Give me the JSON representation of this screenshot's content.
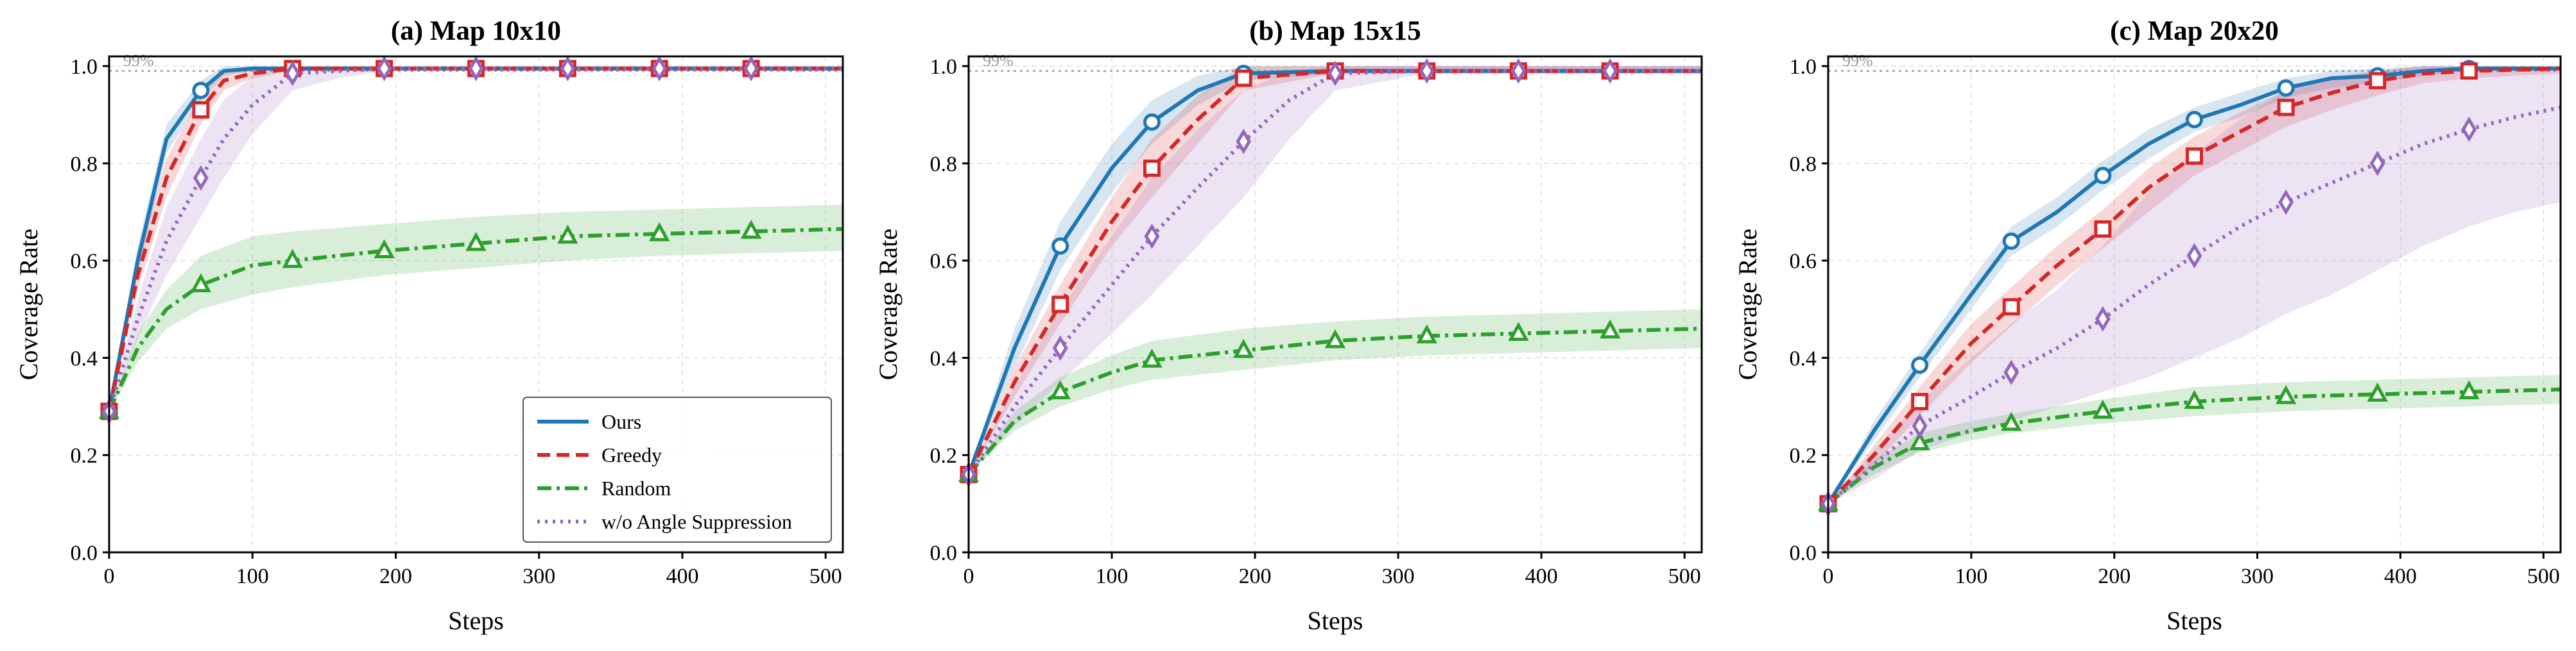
{
  "chart_data": [
    {
      "type": "line",
      "title": "(a) Map 10x10",
      "xlabel": "Steps",
      "ylabel": "Coverage Rate",
      "xlim": [
        0,
        512
      ],
      "ylim": [
        0,
        1.02
      ],
      "xticks": [
        "0",
        "100",
        "200",
        "300",
        "400",
        "500"
      ],
      "yticks": [
        "0.0",
        "0.2",
        "0.4",
        "0.6",
        "0.8",
        "1.0"
      ],
      "grid": true,
      "reference_line": {
        "value": 0.99,
        "label": "99%"
      },
      "legend": {
        "location": "lower-right",
        "entries": [
          "Ours",
          "Greedy",
          "Random",
          "w/o Angle Suppression"
        ]
      },
      "series": [
        {
          "name": "Ours",
          "x": [
            0,
            20,
            40,
            64,
            80,
            100,
            128,
            192,
            256,
            320,
            384,
            448,
            512
          ],
          "values": [
            0.29,
            0.6,
            0.85,
            0.95,
            0.99,
            0.995,
            0.995,
            0.995,
            0.995,
            0.995,
            0.995,
            0.995,
            0.995
          ],
          "lower": [
            0.29,
            0.57,
            0.82,
            0.93,
            0.98,
            0.99,
            0.99,
            0.99,
            0.99,
            0.99,
            0.99,
            0.99,
            0.99
          ],
          "upper": [
            0.29,
            0.63,
            0.88,
            0.97,
            1.0,
            1.0,
            1.0,
            1.0,
            1.0,
            1.0,
            1.0,
            1.0,
            1.0
          ]
        },
        {
          "name": "Greedy",
          "x": [
            0,
            20,
            40,
            64,
            80,
            100,
            128,
            192,
            256,
            320,
            384,
            448,
            512
          ],
          "values": [
            0.29,
            0.57,
            0.77,
            0.91,
            0.97,
            0.985,
            0.995,
            0.995,
            0.995,
            0.995,
            0.995,
            0.995,
            0.995
          ],
          "lower": [
            0.29,
            0.54,
            0.73,
            0.88,
            0.95,
            0.975,
            0.99,
            0.99,
            0.99,
            0.99,
            0.99,
            0.99,
            0.99
          ],
          "upper": [
            0.29,
            0.6,
            0.81,
            0.94,
            0.99,
            1.0,
            1.0,
            1.0,
            1.0,
            1.0,
            1.0,
            1.0,
            1.0
          ]
        },
        {
          "name": "Random",
          "x": [
            0,
            20,
            40,
            64,
            100,
            128,
            192,
            256,
            320,
            384,
            448,
            512
          ],
          "values": [
            0.29,
            0.42,
            0.5,
            0.55,
            0.59,
            0.6,
            0.62,
            0.635,
            0.65,
            0.655,
            0.66,
            0.665
          ],
          "lower": [
            0.29,
            0.39,
            0.46,
            0.5,
            0.53,
            0.545,
            0.57,
            0.585,
            0.6,
            0.61,
            0.615,
            0.62
          ],
          "upper": [
            0.29,
            0.45,
            0.54,
            0.61,
            0.65,
            0.66,
            0.675,
            0.69,
            0.7,
            0.705,
            0.71,
            0.715
          ]
        },
        {
          "name": "w/o Angle Suppression",
          "x": [
            0,
            20,
            40,
            64,
            80,
            100,
            128,
            160,
            192,
            256,
            320,
            384,
            448,
            512
          ],
          "values": [
            0.29,
            0.48,
            0.64,
            0.77,
            0.85,
            0.92,
            0.985,
            0.99,
            0.995,
            0.995,
            0.995,
            0.995,
            0.995,
            0.995
          ],
          "lower": [
            0.29,
            0.44,
            0.57,
            0.69,
            0.77,
            0.86,
            0.95,
            0.975,
            0.99,
            0.99,
            0.99,
            0.99,
            0.99,
            0.99
          ],
          "upper": [
            0.29,
            0.52,
            0.71,
            0.85,
            0.93,
            0.98,
            1.0,
            1.0,
            1.0,
            1.0,
            1.0,
            1.0,
            1.0,
            1.0
          ]
        }
      ]
    },
    {
      "type": "line",
      "title": "(b) Map 15x15",
      "xlabel": "Steps",
      "ylabel": "Coverage Rate",
      "xlim": [
        0,
        512
      ],
      "ylim": [
        0,
        1.02
      ],
      "xticks": [
        "0",
        "100",
        "200",
        "300",
        "400",
        "500"
      ],
      "yticks": [
        "0.0",
        "0.2",
        "0.4",
        "0.6",
        "0.8",
        "1.0"
      ],
      "grid": true,
      "reference_line": {
        "value": 0.99,
        "label": "99%"
      },
      "series": [
        {
          "name": "Ours",
          "x": [
            0,
            32,
            64,
            100,
            128,
            160,
            192,
            256,
            320,
            384,
            448,
            512
          ],
          "values": [
            0.16,
            0.42,
            0.63,
            0.79,
            0.885,
            0.95,
            0.985,
            0.99,
            0.99,
            0.99,
            0.99,
            0.99
          ],
          "lower": [
            0.16,
            0.38,
            0.58,
            0.74,
            0.84,
            0.92,
            0.97,
            0.985,
            0.985,
            0.985,
            0.985,
            0.985
          ],
          "upper": [
            0.16,
            0.46,
            0.68,
            0.84,
            0.93,
            0.98,
            1.0,
            1.0,
            1.0,
            1.0,
            1.0,
            1.0
          ]
        },
        {
          "name": "Greedy",
          "x": [
            0,
            32,
            64,
            100,
            128,
            160,
            192,
            256,
            320,
            384,
            448,
            512
          ],
          "values": [
            0.16,
            0.35,
            0.51,
            0.68,
            0.79,
            0.89,
            0.975,
            0.99,
            0.99,
            0.99,
            0.99,
            0.99
          ],
          "lower": [
            0.16,
            0.32,
            0.47,
            0.63,
            0.73,
            0.84,
            0.95,
            0.985,
            0.985,
            0.985,
            0.985,
            0.985
          ],
          "upper": [
            0.16,
            0.38,
            0.55,
            0.73,
            0.85,
            0.94,
            1.0,
            1.0,
            1.0,
            1.0,
            1.0,
            1.0
          ]
        },
        {
          "name": "Random",
          "x": [
            0,
            32,
            64,
            100,
            128,
            192,
            256,
            320,
            384,
            448,
            512
          ],
          "values": [
            0.16,
            0.27,
            0.33,
            0.37,
            0.395,
            0.415,
            0.435,
            0.445,
            0.45,
            0.455,
            0.46
          ],
          "lower": [
            0.16,
            0.25,
            0.3,
            0.335,
            0.355,
            0.375,
            0.395,
            0.405,
            0.41,
            0.415,
            0.42
          ],
          "upper": [
            0.16,
            0.29,
            0.36,
            0.405,
            0.435,
            0.46,
            0.475,
            0.485,
            0.49,
            0.495,
            0.5
          ]
        },
        {
          "name": "w/o Angle Suppression",
          "x": [
            0,
            32,
            64,
            100,
            128,
            160,
            192,
            224,
            256,
            320,
            384,
            448,
            512
          ],
          "values": [
            0.16,
            0.3,
            0.42,
            0.55,
            0.65,
            0.75,
            0.845,
            0.93,
            0.985,
            0.99,
            0.99,
            0.99,
            0.99
          ],
          "lower": [
            0.16,
            0.26,
            0.35,
            0.45,
            0.53,
            0.63,
            0.73,
            0.85,
            0.95,
            0.985,
            0.985,
            0.985,
            0.985
          ],
          "upper": [
            0.16,
            0.34,
            0.5,
            0.65,
            0.77,
            0.87,
            0.95,
            0.99,
            1.0,
            1.0,
            1.0,
            1.0,
            1.0
          ]
        }
      ]
    },
    {
      "type": "line",
      "title": "(c) Map 20x20",
      "xlabel": "Steps",
      "ylabel": "Coverage Rate",
      "xlim": [
        0,
        512
      ],
      "ylim": [
        0,
        1.02
      ],
      "xticks": [
        "0",
        "100",
        "200",
        "300",
        "400",
        "500"
      ],
      "yticks": [
        "0.0",
        "0.2",
        "0.4",
        "0.6",
        "0.8",
        "1.0"
      ],
      "grid": true,
      "reference_line": {
        "value": 0.99,
        "label": "99%"
      },
      "series": [
        {
          "name": "Ours",
          "x": [
            0,
            32,
            64,
            100,
            128,
            160,
            192,
            224,
            256,
            288,
            320,
            352,
            384,
            416,
            448,
            512
          ],
          "values": [
            0.1,
            0.25,
            0.385,
            0.53,
            0.64,
            0.7,
            0.775,
            0.84,
            0.89,
            0.92,
            0.955,
            0.975,
            0.98,
            0.99,
            0.995,
            0.995
          ],
          "lower": [
            0.1,
            0.23,
            0.36,
            0.5,
            0.61,
            0.67,
            0.745,
            0.81,
            0.865,
            0.895,
            0.935,
            0.955,
            0.965,
            0.98,
            0.99,
            0.99
          ],
          "upper": [
            0.1,
            0.27,
            0.41,
            0.56,
            0.67,
            0.73,
            0.805,
            0.87,
            0.915,
            0.945,
            0.975,
            0.99,
            0.995,
            1.0,
            1.0,
            1.0
          ]
        },
        {
          "name": "Greedy",
          "x": [
            0,
            32,
            64,
            100,
            128,
            160,
            192,
            224,
            256,
            288,
            320,
            352,
            384,
            416,
            448,
            512
          ],
          "values": [
            0.1,
            0.2,
            0.31,
            0.43,
            0.505,
            0.59,
            0.665,
            0.75,
            0.815,
            0.865,
            0.915,
            0.945,
            0.97,
            0.985,
            0.99,
            0.995
          ],
          "lower": [
            0.1,
            0.18,
            0.28,
            0.39,
            0.465,
            0.55,
            0.625,
            0.7,
            0.775,
            0.825,
            0.875,
            0.91,
            0.94,
            0.965,
            0.975,
            0.985
          ],
          "upper": [
            0.1,
            0.22,
            0.34,
            0.47,
            0.545,
            0.63,
            0.705,
            0.79,
            0.855,
            0.905,
            0.95,
            0.975,
            0.99,
            1.0,
            1.0,
            1.0
          ]
        },
        {
          "name": "Random",
          "x": [
            0,
            32,
            64,
            100,
            128,
            192,
            256,
            320,
            384,
            448,
            512
          ],
          "values": [
            0.1,
            0.175,
            0.225,
            0.25,
            0.265,
            0.29,
            0.31,
            0.32,
            0.325,
            0.33,
            0.335
          ],
          "lower": [
            0.1,
            0.16,
            0.205,
            0.23,
            0.245,
            0.265,
            0.28,
            0.29,
            0.295,
            0.3,
            0.305
          ],
          "upper": [
            0.1,
            0.19,
            0.245,
            0.27,
            0.285,
            0.315,
            0.34,
            0.35,
            0.355,
            0.36,
            0.365
          ]
        },
        {
          "name": "w/o Angle Suppression",
          "x": [
            0,
            32,
            64,
            100,
            128,
            160,
            192,
            224,
            256,
            288,
            320,
            352,
            384,
            416,
            448,
            480,
            512
          ],
          "values": [
            0.1,
            0.18,
            0.26,
            0.32,
            0.37,
            0.42,
            0.48,
            0.55,
            0.61,
            0.67,
            0.72,
            0.76,
            0.8,
            0.84,
            0.87,
            0.895,
            0.915
          ],
          "lower": [
            0.1,
            0.15,
            0.21,
            0.245,
            0.27,
            0.3,
            0.33,
            0.36,
            0.4,
            0.44,
            0.49,
            0.53,
            0.58,
            0.63,
            0.67,
            0.7,
            0.72
          ],
          "upper": [
            0.1,
            0.21,
            0.31,
            0.4,
            0.47,
            0.54,
            0.63,
            0.74,
            0.82,
            0.89,
            0.95,
            0.98,
            0.99,
            1.0,
            1.0,
            1.0,
            1.0
          ]
        }
      ]
    }
  ],
  "style": {
    "colors": {
      "Ours": "#1f77b4",
      "Greedy": "#d62728",
      "Random": "#2ca02c",
      "w/o Angle Suppression": "#9467bd"
    },
    "markers": {
      "Ours": "circle",
      "Greedy": "square",
      "Random": "triangle",
      "w/o Angle Suppression": "diamond"
    },
    "dashes": {
      "Ours": "solid",
      "Greedy": "dashed",
      "Random": "dashdot",
      "w/o Angle Suppression": "dotted"
    },
    "marker_steps": [
      0,
      64,
      128,
      192,
      256,
      320,
      384,
      448
    ]
  }
}
